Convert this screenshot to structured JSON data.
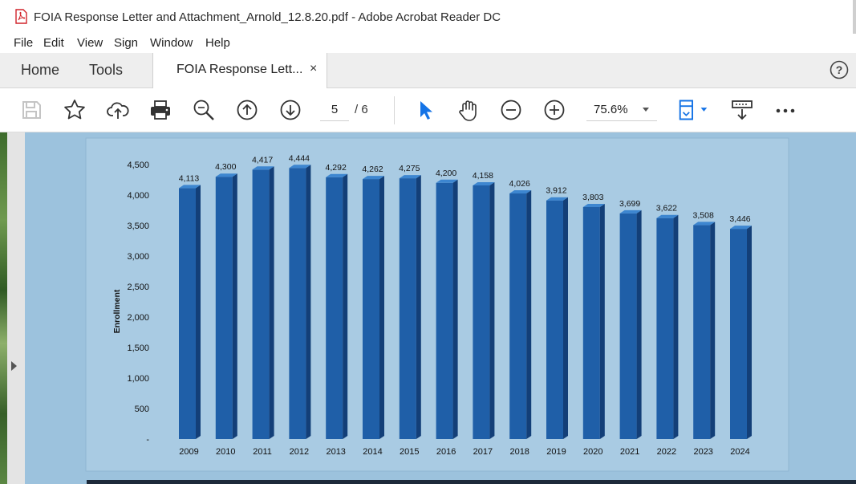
{
  "window": {
    "title": "FOIA Response Letter and Attachment_Arnold_12.8.20.pdf - Adobe Acrobat Reader DC",
    "app_icon": "pdf-file-icon"
  },
  "menu": [
    "File",
    "Edit",
    "View",
    "Sign",
    "Window",
    "Help"
  ],
  "tabs": {
    "home": "Home",
    "tools": "Tools",
    "document": "FOIA Response Lett...",
    "close_symbol": "×",
    "help_symbol": "?"
  },
  "toolbar": {
    "icons": [
      "save-icon",
      "star-icon",
      "cloud-upload-icon",
      "print-icon",
      "zoom-search-icon",
      "page-up-icon",
      "page-down-icon",
      "select-cursor-icon",
      "hand-icon",
      "zoom-out-icon",
      "zoom-in-icon",
      "fit-page-icon",
      "comment-icon",
      "more-icon"
    ],
    "current_page": "5",
    "total_pages": "/ 6",
    "zoom": "75.6%"
  },
  "colors": {
    "accent_blue": "#1473e6",
    "page_background": "#9cc2dd",
    "bar_front": "#1f5fa8",
    "bar_top": "#3d86d0",
    "bar_side": "#133f78"
  },
  "chart_data": {
    "type": "bar",
    "ylabel": "Enrollment",
    "categories": [
      "2009",
      "2010",
      "2011",
      "2012",
      "2013",
      "2014",
      "2015",
      "2016",
      "2017",
      "2018",
      "2019",
      "2020",
      "2021",
      "2022",
      "2023",
      "2024"
    ],
    "values": [
      4113,
      4300,
      4417,
      4444,
      4292,
      4262,
      4275,
      4200,
      4158,
      4026,
      3912,
      3803,
      3699,
      3622,
      3508,
      3446
    ],
    "value_labels": [
      "4,113",
      "4,300",
      "4,417",
      "4,444",
      "4,292",
      "4,262",
      "4,275",
      "4,200",
      "4,158",
      "4,026",
      "3,912",
      "3,803",
      "3,699",
      "3,622",
      "3,508",
      "3,446"
    ],
    "yticks": [
      0,
      500,
      1000,
      1500,
      2000,
      2500,
      3000,
      3500,
      4000,
      4500
    ],
    "ytick_labels": [
      "-",
      "500",
      "1,000",
      "1,500",
      "2,000",
      "2,500",
      "3,000",
      "3,500",
      "4,000",
      "4,500"
    ],
    "ylim": [
      0,
      4500
    ],
    "grid": false,
    "style": "3d-columns"
  }
}
